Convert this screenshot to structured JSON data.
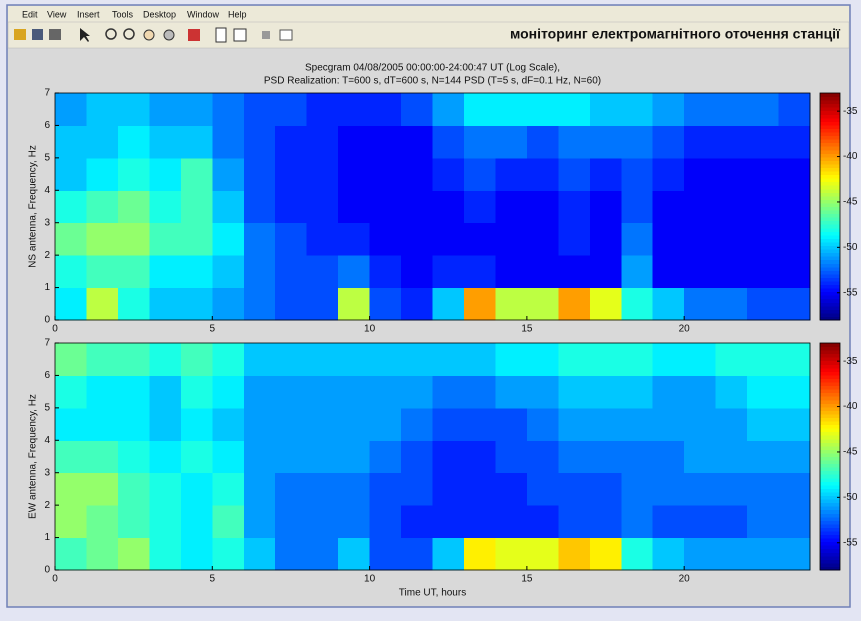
{
  "window": {
    "menu": [
      "Edit",
      "View",
      "Insert",
      "Tools",
      "Desktop",
      "Window",
      "Help"
    ],
    "banner": "моніторинг електромагнітного оточення станції"
  },
  "chart_data": [
    {
      "type": "heatmap",
      "title": "Specgram  04/08/2005  00:00:00-24:00:47 UT (Log Scale),",
      "subtitle": "PSD Realization: T=600 s, dT=600 s, N=144 PSD (T=5 s, dF=0.1 Hz, N=60)",
      "ylabel": "NS antenna, Frequency, Hz",
      "colormap": "jet",
      "xlim": [
        0,
        24
      ],
      "xticks": [
        0,
        5,
        10,
        15,
        20
      ],
      "ylim": [
        0,
        7
      ],
      "yticks": [
        0,
        1,
        2,
        3,
        4,
        5,
        6,
        7
      ],
      "xbins": [
        0,
        1,
        2,
        3,
        4,
        5,
        6,
        7,
        8,
        9,
        10,
        11,
        12,
        13,
        14,
        15,
        16,
        17,
        18,
        19,
        20,
        21,
        22,
        23,
        24
      ],
      "ybins": [
        0,
        1,
        2,
        3,
        4,
        5,
        6,
        7
      ],
      "clim": [
        -58,
        -33
      ],
      "cticks": [
        -55,
        -50,
        -45,
        -40,
        -35
      ],
      "z": [
        [
          -49,
          -44,
          -48,
          -50,
          -50,
          -51,
          -52,
          -53,
          -53,
          -44,
          -53,
          -54,
          -50,
          -40,
          -44,
          -44,
          -40,
          -43,
          -48,
          -50,
          -52,
          -52,
          -53,
          -53
        ],
        [
          -48,
          -47,
          -47,
          -49,
          -49,
          -50,
          -52,
          -53,
          -53,
          -52,
          -54,
          -55,
          -54,
          -54,
          -55,
          -55,
          -55,
          -55,
          -51,
          -55,
          -55,
          -55,
          -55,
          -55
        ],
        [
          -46,
          -45,
          -45,
          -47,
          -47,
          -49,
          -52,
          -53,
          -54,
          -54,
          -55,
          -55,
          -55,
          -55,
          -55,
          -55,
          -54,
          -55,
          -52,
          -55,
          -55,
          -55,
          -55,
          -55
        ],
        [
          -48,
          -47,
          -46,
          -48,
          -47,
          -50,
          -53,
          -54,
          -54,
          -55,
          -55,
          -55,
          -55,
          -54,
          -55,
          -55,
          -54,
          -55,
          -53,
          -55,
          -55,
          -55,
          -55,
          -55
        ],
        [
          -50,
          -49,
          -48,
          -49,
          -47,
          -51,
          -53,
          -54,
          -54,
          -55,
          -55,
          -55,
          -54,
          -53,
          -54,
          -54,
          -53,
          -54,
          -53,
          -54,
          -55,
          -55,
          -55,
          -55
        ],
        [
          -50,
          -50,
          -49,
          -50,
          -50,
          -52,
          -53,
          -54,
          -54,
          -55,
          -55,
          -55,
          -53,
          -52,
          -52,
          -53,
          -52,
          -52,
          -52,
          -53,
          -54,
          -54,
          -54,
          -54
        ],
        [
          -51,
          -50,
          -50,
          -51,
          -51,
          -52,
          -53,
          -53,
          -54,
          -54,
          -54,
          -53,
          -51,
          -49,
          -49,
          -49,
          -49,
          -50,
          -50,
          -51,
          -52,
          -52,
          -52,
          -53
        ]
      ]
    },
    {
      "type": "heatmap",
      "xlabel": "Time UT, hours",
      "ylabel": "EW antenna, Frequency, Hz",
      "colormap": "jet",
      "xlim": [
        0,
        24
      ],
      "xticks": [
        0,
        5,
        10,
        15,
        20
      ],
      "ylim": [
        0,
        7
      ],
      "yticks": [
        0,
        1,
        2,
        3,
        4,
        5,
        6,
        7
      ],
      "xbins": [
        0,
        1,
        2,
        3,
        4,
        5,
        6,
        7,
        8,
        9,
        10,
        11,
        12,
        13,
        14,
        15,
        16,
        17,
        18,
        19,
        20,
        21,
        22,
        23,
        24
      ],
      "ybins": [
        0,
        1,
        2,
        3,
        4,
        5,
        6,
        7
      ],
      "clim": [
        -58,
        -33
      ],
      "cticks": [
        -55,
        -50,
        -45,
        -40,
        -35
      ],
      "z": [
        [
          -47,
          -46,
          -45,
          -48,
          -49,
          -48,
          -50,
          -52,
          -52,
          -50,
          -53,
          -53,
          -50,
          -42,
          -43,
          -43,
          -41,
          -42,
          -48,
          -50,
          -51,
          -51,
          -51,
          -51
        ],
        [
          -45,
          -46,
          -47,
          -48,
          -49,
          -47,
          -51,
          -52,
          -52,
          -52,
          -53,
          -54,
          -54,
          -54,
          -54,
          -54,
          -53,
          -53,
          -52,
          -53,
          -53,
          -53,
          -52,
          -52
        ],
        [
          -45,
          -45,
          -47,
          -48,
          -49,
          -48,
          -51,
          -52,
          -52,
          -52,
          -53,
          -53,
          -54,
          -54,
          -54,
          -53,
          -53,
          -53,
          -52,
          -52,
          -52,
          -52,
          -52,
          -52
        ],
        [
          -47,
          -47,
          -48,
          -49,
          -48,
          -49,
          -51,
          -51,
          -51,
          -51,
          -52,
          -53,
          -54,
          -54,
          -53,
          -53,
          -52,
          -52,
          -52,
          -52,
          -51,
          -51,
          -51,
          -51
        ],
        [
          -49,
          -49,
          -49,
          -50,
          -49,
          -50,
          -51,
          -51,
          -51,
          -51,
          -51,
          -52,
          -53,
          -53,
          -53,
          -52,
          -51,
          -51,
          -51,
          -51,
          -51,
          -51,
          -50,
          -50
        ],
        [
          -48,
          -49,
          -49,
          -50,
          -48,
          -49,
          -51,
          -51,
          -51,
          -51,
          -51,
          -51,
          -52,
          -52,
          -51,
          -51,
          -50,
          -50,
          -50,
          -51,
          -51,
          -50,
          -49,
          -49
        ],
        [
          -46,
          -47,
          -47,
          -48,
          -47,
          -48,
          -50,
          -50,
          -50,
          -50,
          -50,
          -50,
          -50,
          -50,
          -49,
          -49,
          -48,
          -48,
          -48,
          -49,
          -49,
          -48,
          -48,
          -48
        ]
      ]
    }
  ]
}
